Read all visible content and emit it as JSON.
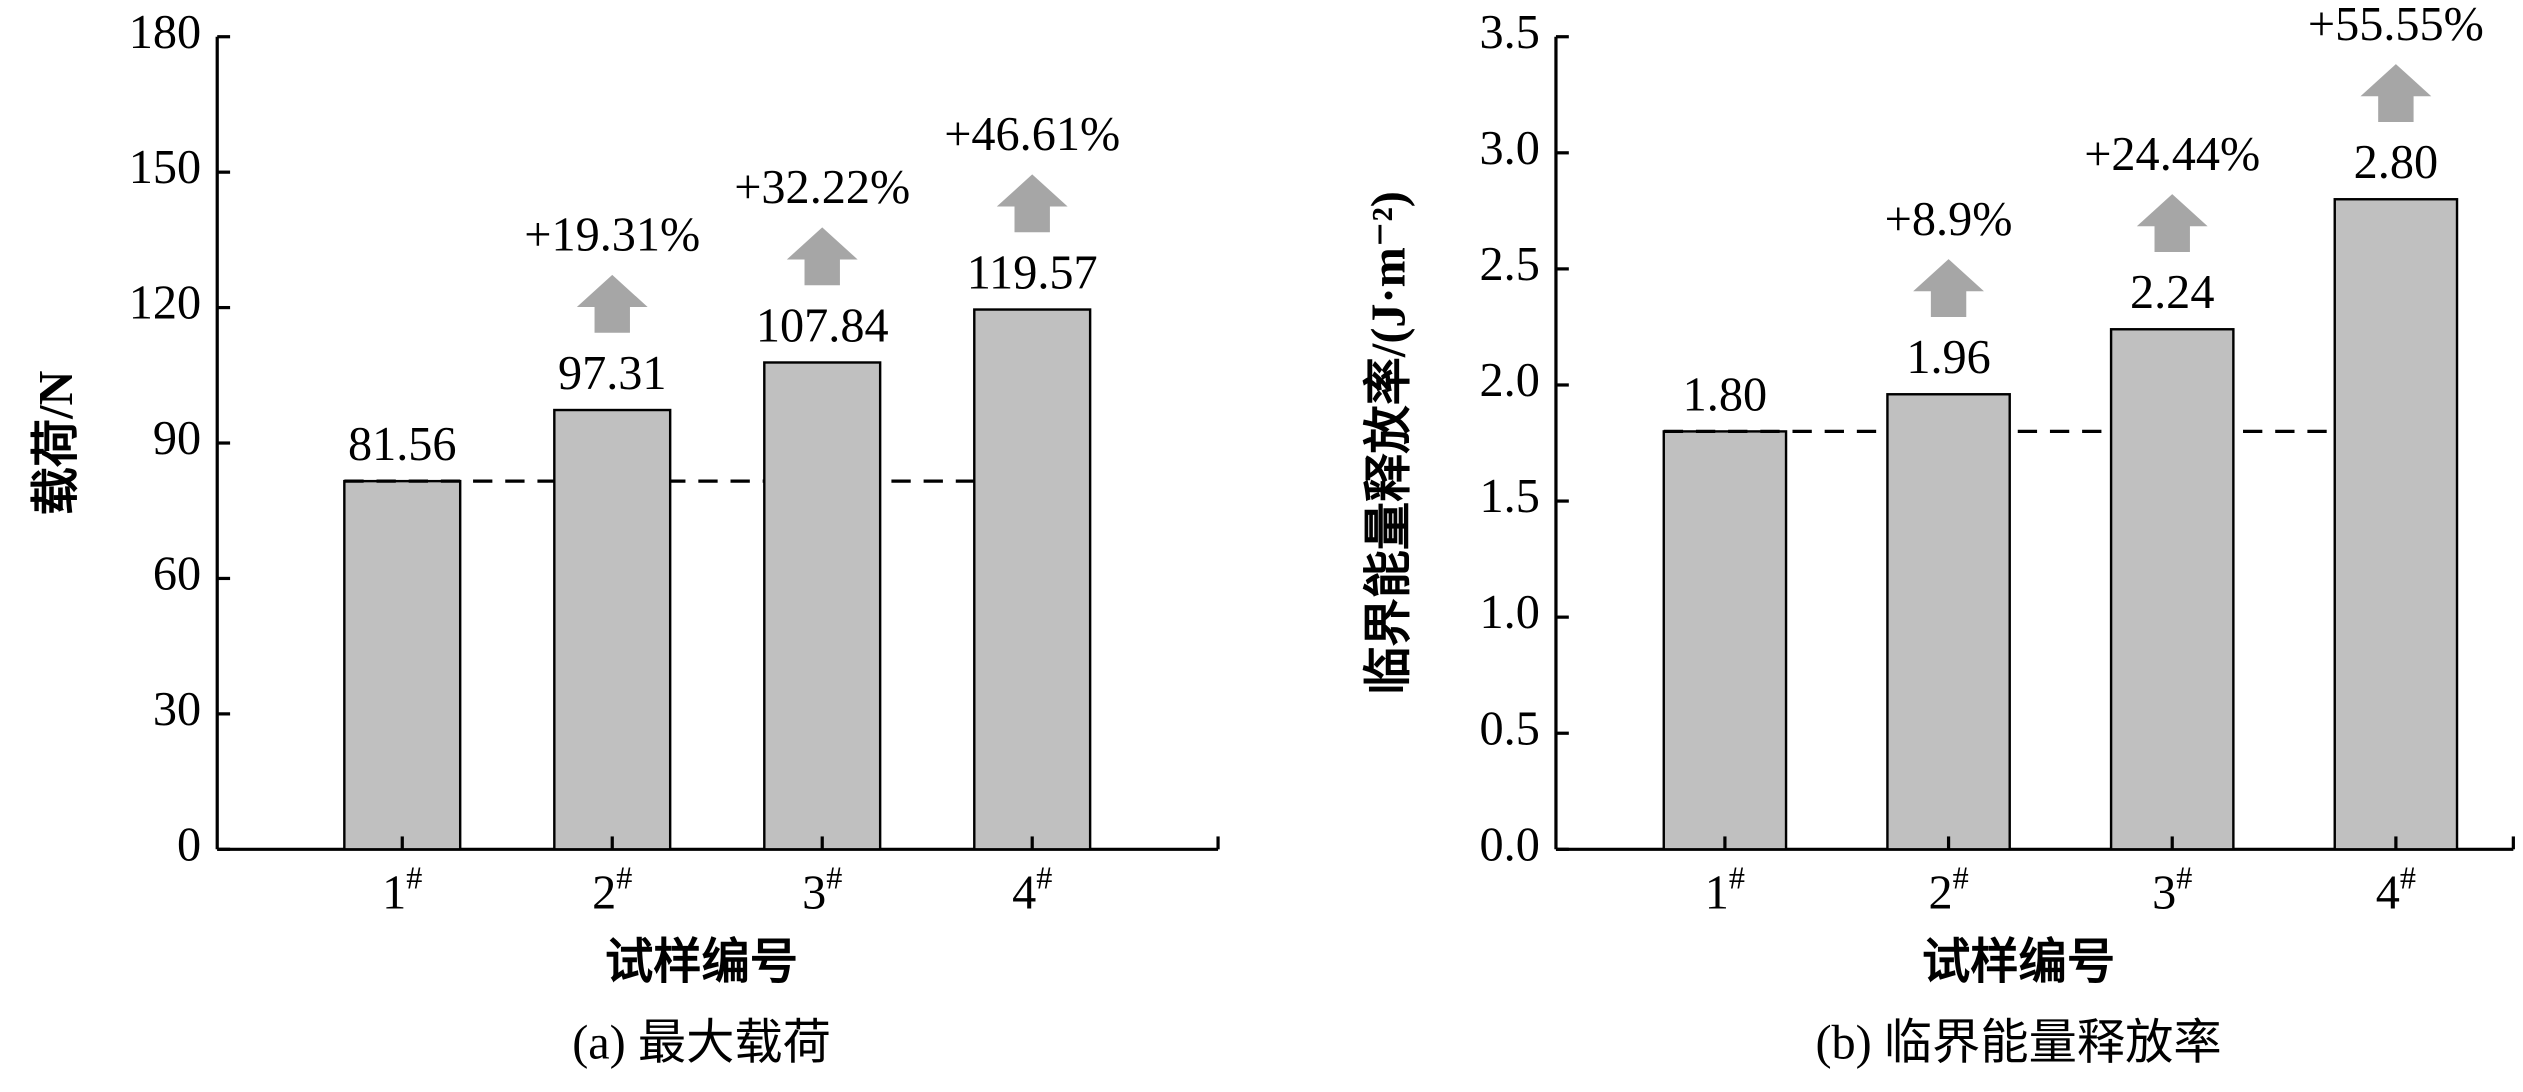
{
  "chart_data": [
    {
      "type": "bar",
      "title": "(a) 最大载荷",
      "x_label": "试样编号",
      "y_label": "载荷/N",
      "categories": [
        "1#",
        "2#",
        "3#",
        "4#"
      ],
      "values": [
        81.56,
        97.31,
        107.84,
        119.57
      ],
      "increase_labels": [
        null,
        "+19.31%",
        "+32.22%",
        "+46.61%"
      ],
      "color": "#c0c0c0",
      "arrow_color": "#a6a6a6",
      "ylim": [
        0,
        180
      ],
      "yticks": [
        0,
        30,
        60,
        90,
        120,
        150,
        180
      ]
    },
    {
      "type": "bar",
      "title": "(b) 临界能量释放率",
      "x_label": "试样编号",
      "y_label": "临界能量释放率/(J·m⁻²)",
      "categories": [
        "1#",
        "2#",
        "3#",
        "4#"
      ],
      "values": [
        1.8,
        1.96,
        2.24,
        2.8
      ],
      "value_labels": [
        "1.80",
        "1.96",
        "2.24",
        "2.80"
      ],
      "increase_labels": [
        null,
        "+8.9%",
        "+24.44%",
        "+55.55%"
      ],
      "color": "#c0c0c0",
      "arrow_color": "#a6a6a6",
      "ylim": [
        0,
        3.5
      ],
      "yticks": [
        {
          "value": 0,
          "label": "0.0"
        },
        0.5,
        {
          "value": 1,
          "label": "1.0"
        },
        1.5,
        {
          "value": 2,
          "label": "2.0"
        },
        2.5,
        {
          "value": 3,
          "label": "3.0"
        },
        3.5
      ]
    }
  ]
}
